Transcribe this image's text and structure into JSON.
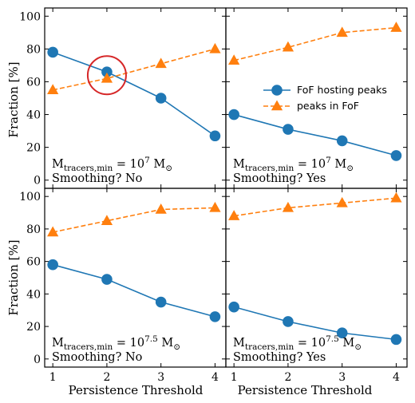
{
  "colors": {
    "fof_series": "#1f77b4",
    "peaks_series": "#ff7f0e",
    "highlight_circle": "#d62728",
    "axes": "#000000"
  },
  "figure": {
    "ylabel": "Fraction [%]",
    "xlabel": "Persistence Threshold"
  },
  "legend": {
    "placement": "right side of top-right panel",
    "items": [
      "FoF hosting peaks",
      "peaks in FoF"
    ]
  },
  "chart_data": [
    {
      "type": "line",
      "panel": "top-left",
      "x": [
        1,
        2,
        3,
        4
      ],
      "xlim": [
        0.85,
        4.2
      ],
      "ylim": [
        -5,
        105
      ],
      "yticks": [
        0,
        20,
        40,
        60,
        80,
        100
      ],
      "xticks": [
        1,
        2,
        3,
        4
      ],
      "series": [
        {
          "name": "FoF hosting peaks",
          "values": [
            78,
            66,
            50,
            27
          ],
          "marker": "circle",
          "linestyle": "solid"
        },
        {
          "name": "peaks in FoF",
          "values": [
            55,
            62,
            71,
            80
          ],
          "marker": "triangle",
          "linestyle": "dashed"
        }
      ],
      "annotation": {
        "m_base": "M",
        "m_sub": "tracers,min",
        "eq": " = 10",
        "exp": "7",
        "unit": " M",
        "sun": "⊙",
        "smoothing": "Smoothing? No"
      },
      "highlight": {
        "x": 2,
        "y": 64
      }
    },
    {
      "type": "line",
      "panel": "top-right",
      "x": [
        1,
        2,
        3,
        4
      ],
      "xlim": [
        0.85,
        4.2
      ],
      "ylim": [
        -5,
        105
      ],
      "yticks": [
        0,
        20,
        40,
        60,
        80,
        100
      ],
      "xticks": [
        1,
        2,
        3,
        4
      ],
      "series": [
        {
          "name": "FoF hosting peaks",
          "values": [
            40,
            31,
            24,
            15
          ],
          "marker": "circle",
          "linestyle": "solid"
        },
        {
          "name": "peaks in FoF",
          "values": [
            73,
            81,
            90,
            93
          ],
          "marker": "triangle",
          "linestyle": "dashed"
        }
      ],
      "annotation": {
        "m_base": "M",
        "m_sub": "tracers,min",
        "eq": " = 10",
        "exp": "7",
        "unit": " M",
        "sun": "⊙",
        "smoothing": "Smoothing? Yes"
      }
    },
    {
      "type": "line",
      "panel": "bottom-left",
      "x": [
        1,
        2,
        3,
        4
      ],
      "xlim": [
        0.85,
        4.2
      ],
      "ylim": [
        -5,
        105
      ],
      "yticks": [
        0,
        20,
        40,
        60,
        80,
        100
      ],
      "xticks": [
        1,
        2,
        3,
        4
      ],
      "series": [
        {
          "name": "FoF hosting peaks",
          "values": [
            58,
            49,
            35,
            26
          ],
          "marker": "circle",
          "linestyle": "solid"
        },
        {
          "name": "peaks in FoF",
          "values": [
            78,
            85,
            92,
            93
          ],
          "marker": "triangle",
          "linestyle": "dashed"
        }
      ],
      "annotation": {
        "m_base": "M",
        "m_sub": "tracers,min",
        "eq": " = 10",
        "exp": "7.5",
        "unit": " M",
        "sun": "⊙",
        "smoothing": "Smoothing? No"
      }
    },
    {
      "type": "line",
      "panel": "bottom-right",
      "x": [
        1,
        2,
        3,
        4
      ],
      "xlim": [
        0.85,
        4.2
      ],
      "ylim": [
        -5,
        105
      ],
      "yticks": [
        0,
        20,
        40,
        60,
        80,
        100
      ],
      "xticks": [
        1,
        2,
        3,
        4
      ],
      "series": [
        {
          "name": "FoF hosting peaks",
          "values": [
            32,
            23,
            16,
            12
          ],
          "marker": "circle",
          "linestyle": "solid"
        },
        {
          "name": "peaks in FoF",
          "values": [
            88,
            93,
            96,
            99
          ],
          "marker": "triangle",
          "linestyle": "dashed"
        }
      ],
      "annotation": {
        "m_base": "M",
        "m_sub": "tracers,min",
        "eq": " = 10",
        "exp": "7.5",
        "unit": " M",
        "sun": "⊙",
        "smoothing": "Smoothing? Yes"
      }
    }
  ]
}
